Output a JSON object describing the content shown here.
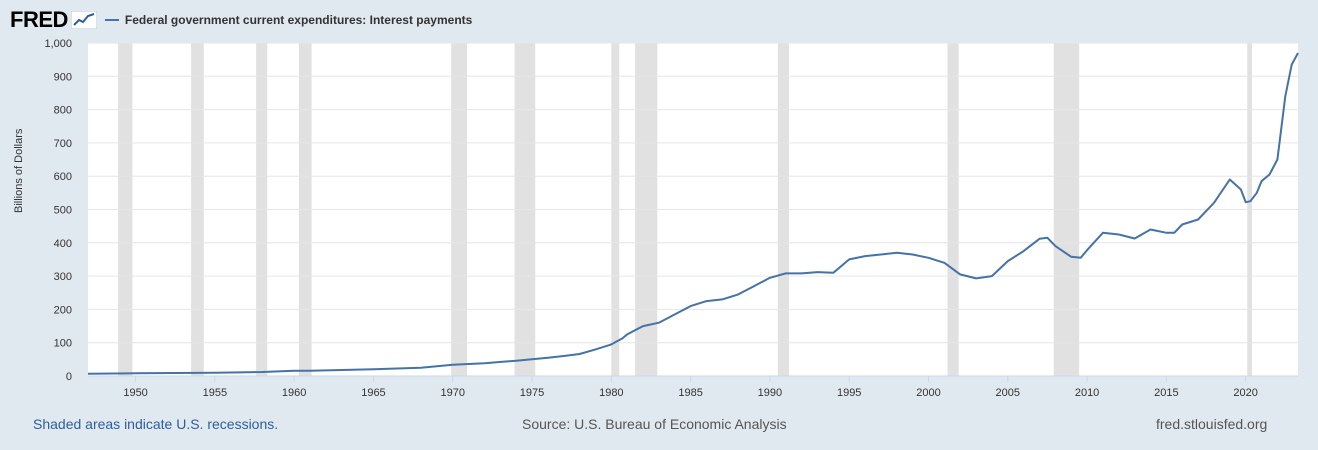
{
  "header": {
    "logo_text": "FRED",
    "logo_icon": "fred-trend-icon",
    "legend_label": "Federal government current expenditures: Interest payments"
  },
  "footer": {
    "recession_note": "Shaded areas indicate U.S. recessions.",
    "source": "Source: U.S. Bureau of Economic Analysis",
    "site": "fred.stlouisfed.org"
  },
  "colors": {
    "background": "#e1e9f0",
    "plot_background": "#ffffff",
    "line": "#4572a7",
    "recession": "#e1e1e1",
    "grid": "#e6e6e6"
  },
  "chart_data": {
    "type": "line",
    "title": "",
    "xlabel": "",
    "ylabel": "Billions of Dollars",
    "xlim": [
      1947.0,
      2023.3
    ],
    "ylim": [
      0,
      1000
    ],
    "yticks": [
      0,
      100,
      200,
      300,
      400,
      500,
      600,
      700,
      800,
      900,
      1000
    ],
    "ytick_labels": [
      "0",
      "100",
      "200",
      "300",
      "400",
      "500",
      "600",
      "700",
      "800",
      "900",
      "1,000"
    ],
    "xticks": [
      1950,
      1955,
      1960,
      1965,
      1970,
      1975,
      1980,
      1985,
      1990,
      1995,
      2000,
      2005,
      2010,
      2015,
      2020
    ],
    "xtick_labels": [
      "1950",
      "1955",
      "1960",
      "1965",
      "1970",
      "1975",
      "1980",
      "1985",
      "1990",
      "1995",
      "2000",
      "2005",
      "2010",
      "2015",
      "2020"
    ],
    "grid": "horizontal",
    "legend": "top-left",
    "recessions": [
      [
        1948.9,
        1949.8
      ],
      [
        1953.5,
        1954.3
      ],
      [
        1957.6,
        1958.3
      ],
      [
        1960.3,
        1961.1
      ],
      [
        1969.9,
        1970.9
      ],
      [
        1973.9,
        1975.2
      ],
      [
        1980.0,
        1980.5
      ],
      [
        1981.5,
        1982.9
      ],
      [
        1990.5,
        1991.2
      ],
      [
        2001.2,
        2001.9
      ],
      [
        2007.9,
        2009.5
      ],
      [
        2020.1,
        2020.4
      ]
    ],
    "series": [
      {
        "name": "Federal government current expenditures: Interest payments",
        "x": [
          1947,
          1950,
          1955,
          1958,
          1960,
          1961,
          1965,
          1968,
          1970,
          1972,
          1974,
          1976,
          1977,
          1978,
          1979,
          1980,
          1980.7,
          1981,
          1982,
          1983,
          1984,
          1985,
          1986,
          1987,
          1988,
          1989,
          1990,
          1991,
          1992,
          1993,
          1994,
          1995,
          1996,
          1997,
          1998,
          1999,
          2000,
          2001,
          2002,
          2003,
          2004,
          2005,
          2006,
          2007,
          2007.5,
          2008,
          2009,
          2009.6,
          2010,
          2011,
          2012,
          2013,
          2014,
          2015,
          2015.5,
          2016,
          2017,
          2018,
          2019,
          2019.7,
          2020,
          2020.3,
          2020.7,
          2021,
          2021.5,
          2022,
          2022.5,
          2022.9,
          2023.3
        ],
        "values": [
          7,
          8,
          10,
          12,
          16,
          16,
          20,
          25,
          34,
          38,
          46,
          55,
          60,
          66,
          80,
          95,
          113,
          125,
          150,
          160,
          185,
          210,
          225,
          230,
          245,
          270,
          295,
          308,
          308,
          312,
          310,
          350,
          360,
          365,
          370,
          365,
          355,
          340,
          305,
          293,
          300,
          345,
          375,
          412,
          415,
          390,
          358,
          355,
          378,
          430,
          425,
          413,
          440,
          430,
          430,
          455,
          470,
          520,
          590,
          560,
          522,
          525,
          550,
          585,
          605,
          650,
          840,
          935,
          970
        ]
      }
    ]
  }
}
